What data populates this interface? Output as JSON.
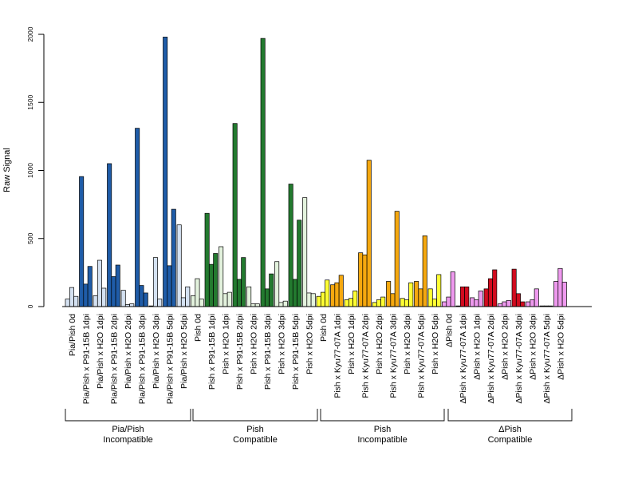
{
  "chart_data": {
    "type": "bar",
    "ylabel": "Raw Signal",
    "ylim": [
      0,
      2000
    ],
    "yticks": [
      0,
      500,
      1000,
      1500,
      2000
    ],
    "categories": [
      "Pia/Pish 0d",
      "Pia/Pish x P91-15B 1dpi",
      "Pia/Pish x H2O 1dpi",
      "Pia/Pish x P91-15B 2dpi",
      "Pia/Pish x H2O 2dpi",
      "Pia/Pish x P91-15B 3dpi",
      "Pia/Pish x H2O 3dpi",
      "Pia/Pish x P91-15B 5dpi",
      "Pia/Pish x H2O 5dpi",
      "Pish 0d",
      "Pish x P91-15B 1dpi",
      "Pish x H2O 1dpi",
      "Pish x P91-15B 2dpi",
      "Pish x H2O 2dpi",
      "Pish x P91-15B 3dpi",
      "Pish x H2O 3dpi",
      "Pish x P91-15B 5dpi",
      "Pish x H2O 5dpi",
      "Pish 0d",
      "Pish x Kyu77-07A 1dpi",
      "Pish x H2O 1dpi",
      "Pish x Kyu77-07A 2dpi",
      "Pish x H2O 2dpi",
      "Pish x Kyu77-07A 3dpi",
      "Pish x H2O 3dpi",
      "Pish x Kyu77-07A 5dpi",
      "Pish x H2O 5dpi",
      "ΔPish 0d",
      "ΔPish x Kyu77-07A 1dpi",
      "ΔPish x H2O 1dpi",
      "ΔPish x Kyu77-07A 2dpi",
      "ΔPish x H2O 2dpi",
      "ΔPish x Kyu77-07A 3dpi",
      "ΔPish x H2O 3dpi",
      "ΔPish x Kyu77-07A 5dpi",
      "ΔPish x H2O 5dpi"
    ],
    "values": [
      [
        55,
        140,
        75
      ],
      [
        955,
        165,
        295
      ],
      [
        80,
        340,
        135
      ],
      [
        1050,
        220,
        305
      ],
      [
        120,
        15,
        20
      ],
      [
        1310,
        155,
        100
      ],
      [
        5,
        360,
        55
      ],
      [
        1980,
        300,
        715
      ],
      [
        600,
        65,
        145
      ],
      [
        80,
        205,
        55
      ],
      [
        685,
        310,
        390
      ],
      [
        440,
        95,
        105
      ],
      [
        1345,
        200,
        360
      ],
      [
        145,
        20,
        20
      ],
      [
        1970,
        130,
        240
      ],
      [
        330,
        30,
        40
      ],
      [
        900,
        200,
        635
      ],
      [
        800,
        100,
        95
      ],
      [
        75,
        105,
        195
      ],
      [
        160,
        175,
        230
      ],
      [
        50,
        60,
        115
      ],
      [
        395,
        380,
        1075
      ],
      [
        30,
        50,
        70
      ],
      [
        185,
        95,
        700
      ],
      [
        60,
        50,
        175
      ],
      [
        185,
        130,
        520
      ],
      [
        130,
        55,
        235
      ],
      [
        35,
        70,
        255
      ],
      [
        5,
        145,
        145
      ],
      [
        65,
        50,
        115
      ],
      [
        130,
        205,
        270
      ],
      [
        20,
        35,
        45
      ],
      [
        275,
        95,
        35
      ],
      [
        35,
        50,
        130
      ],
      [
        5,
        5,
        5
      ],
      [
        185,
        280,
        180
      ]
    ],
    "groups": [
      {
        "line1": "Pia/Pish",
        "line2": "Incompatible",
        "first": 0,
        "last": 8,
        "light": "#d4e1f1",
        "dark": "#1f5ca8"
      },
      {
        "line1": "Pish",
        "line2": "Compatible",
        "first": 9,
        "last": 17,
        "light": "#e3f2dd",
        "dark": "#237a2f"
      },
      {
        "line1": "Pish",
        "line2": "Incompatible",
        "first": 18,
        "last": 26,
        "light": "#ffff33",
        "dark": "#f5a80f"
      },
      {
        "line1": "ΔPish",
        "line2": "Compatible",
        "first": 27,
        "last": 35,
        "light": "#ee99ee",
        "dark": "#d10b1e"
      }
    ],
    "group_labels": [
      "Pia/Pish",
      "Incompatible",
      "Pish",
      "Compatible",
      "Pish",
      "Incompatible",
      "ΔPish",
      "Compatible"
    ]
  }
}
